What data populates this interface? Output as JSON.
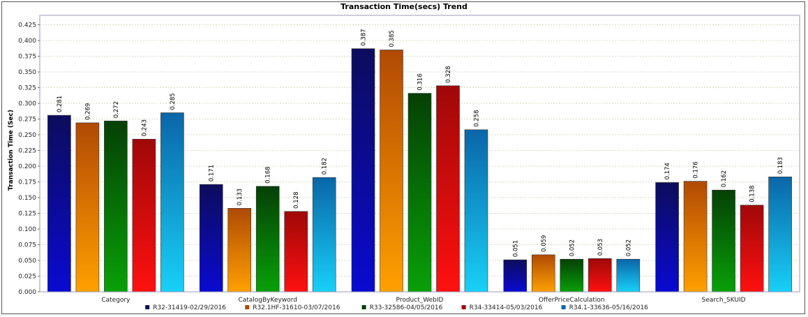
{
  "chart_data": {
    "type": "bar",
    "title": "Transaction Time(secs) Trend",
    "xlabel": "",
    "ylabel": "Transaction Time (Sec)",
    "ylim": [
      0,
      0.44
    ],
    "yticks": [
      "0.000",
      "0.025",
      "0.050",
      "0.075",
      "0.100",
      "0.125",
      "0.150",
      "0.175",
      "0.200",
      "0.225",
      "0.250",
      "0.275",
      "0.300",
      "0.325",
      "0.350",
      "0.375",
      "0.400",
      "0.425"
    ],
    "grid": true,
    "legend_position": "bottom",
    "categories": [
      "Category",
      "CatalogByKeyword",
      "Product_WebID",
      "OfferPriceCalculation",
      "Search_SKUID"
    ],
    "series": [
      {
        "name": "R32-31419-02/29/2016",
        "values": [
          0.281,
          0.171,
          0.387,
          0.051,
          0.174
        ],
        "labels": [
          "0.281",
          "0.171",
          "0.387",
          "0.051",
          "0.174"
        ],
        "color_top": "#0c0c5c",
        "color_bottom": "#0a0ad2"
      },
      {
        "name": "R32.1HF-31610-03/07/2016",
        "values": [
          0.269,
          0.133,
          0.385,
          0.059,
          0.176
        ],
        "labels": [
          "0.269",
          "0.133",
          "0.385",
          "0.059",
          "0.176"
        ],
        "color_top": "#b04a04",
        "color_bottom": "#ffa000"
      },
      {
        "name": "R33-32586-04/05/2016",
        "values": [
          0.272,
          0.168,
          0.316,
          0.052,
          0.162
        ],
        "labels": [
          "0.272",
          "0.168",
          "0.316",
          "0.052",
          "0.162"
        ],
        "color_top": "#054005",
        "color_bottom": "#08a008"
      },
      {
        "name": "R34-33414-05/03/2016",
        "values": [
          0.243,
          0.128,
          0.328,
          0.053,
          0.138
        ],
        "labels": [
          "0.243",
          "0.128",
          "0.328",
          "0.053",
          "0.138"
        ],
        "color_top": "#a00808",
        "color_bottom": "#ff1010"
      },
      {
        "name": "R34.1-33636-05/16/2016",
        "values": [
          0.285,
          0.182,
          0.258,
          0.052,
          0.183
        ],
        "labels": [
          "0.285",
          "0.182",
          "0.258",
          "0.052",
          "0.183"
        ],
        "color_top": "#0a66a8",
        "color_bottom": "#18d0f8"
      }
    ]
  }
}
